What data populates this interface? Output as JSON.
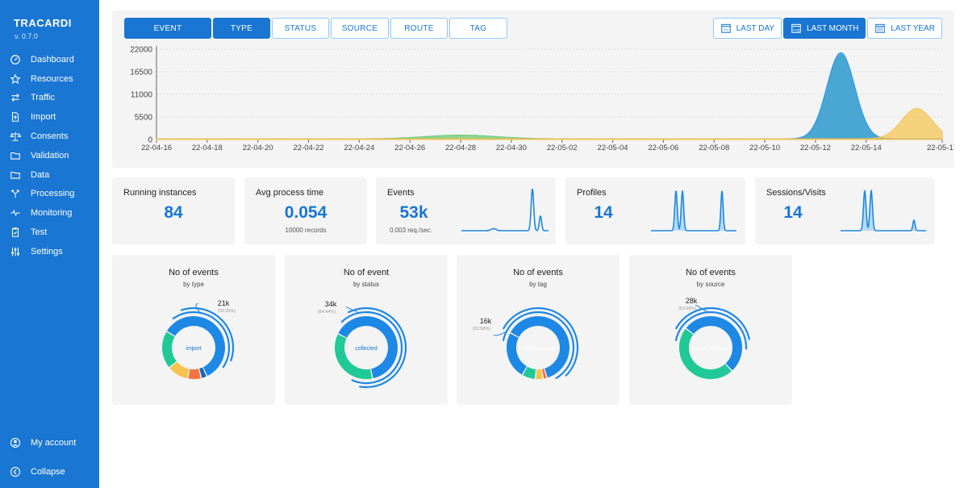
{
  "sidebar": {
    "brand": "TRACARDI",
    "version": "v. 0.7.0",
    "items": [
      {
        "label": "Dashboard",
        "icon": "dashboard-icon"
      },
      {
        "label": "Resources",
        "icon": "star-icon"
      },
      {
        "label": "Traffic",
        "icon": "swap-icon"
      },
      {
        "label": "Import",
        "icon": "import-icon"
      },
      {
        "label": "Consents",
        "icon": "scale-icon"
      },
      {
        "label": "Validation",
        "icon": "folder-icon"
      },
      {
        "label": "Data",
        "icon": "folder-icon"
      },
      {
        "label": "Processing",
        "icon": "fork-icon"
      },
      {
        "label": "Monitoring",
        "icon": "pulse-icon"
      },
      {
        "label": "Test",
        "icon": "clipboard-check-icon"
      },
      {
        "label": "Settings",
        "icon": "sliders-icon"
      }
    ],
    "my_account": "My account",
    "collapse": "Collapse"
  },
  "tabs": [
    "EVENT",
    "TYPE",
    "STATUS",
    "SOURCE",
    "ROUTE",
    "TAG"
  ],
  "active_tabs": [
    "EVENT",
    "TYPE"
  ],
  "ranges": [
    {
      "label": "LAST DAY",
      "icon_text": "Fri"
    },
    {
      "label": "LAST MONTH",
      "icon_text": "Aug"
    },
    {
      "label": "LAST YEAR",
      "icon_text": ""
    }
  ],
  "active_range": "LAST MONTH",
  "chart_data": {
    "type": "area",
    "x_ticks": [
      "22-04-16",
      "22-04-18",
      "22-04-20",
      "22-04-22",
      "22-04-24",
      "22-04-26",
      "22-04-28",
      "22-04-30",
      "22-05-02",
      "22-05-04",
      "22-05-06",
      "22-05-08",
      "22-05-10",
      "22-05-12",
      "22-05-14",
      "22-05-17"
    ],
    "y_ticks": [
      0,
      5500,
      11000,
      16500,
      22000
    ],
    "ylim": [
      0,
      22000
    ],
    "grid": true,
    "series": [
      {
        "color": "#2f95ec",
        "peaks": [
          {
            "x": "22-05-13",
            "y": 21000
          }
        ]
      },
      {
        "color": "#69c96e",
        "peaks": [
          {
            "x": "22-05-13",
            "y": 20500
          },
          {
            "x": "22-04-28",
            "y": 900
          }
        ]
      },
      {
        "color": "#f6c350",
        "peaks": [
          {
            "x": "22-05-16",
            "y": 7400
          }
        ]
      }
    ]
  },
  "stats": [
    {
      "title": "Running instances",
      "value": "84",
      "sub": ""
    },
    {
      "title": "Avg process time",
      "value": "0.054",
      "sub": "10000 records"
    },
    {
      "title": "Events",
      "value": "53k",
      "sub": "0.003 req./sec."
    },
    {
      "title": "Profiles",
      "value": "14",
      "sub": ""
    },
    {
      "title": "Sessions/Visits",
      "value": "14",
      "sub": ""
    }
  ],
  "donuts": [
    {
      "title": "No of events",
      "subtitle": "by type",
      "center": "import",
      "top_value": "21k",
      "top_percent": "(59.35%)",
      "segments": [
        {
          "value": 59.35,
          "color": "#1e88e5"
        },
        {
          "value": 3,
          "color": "#1565c0"
        },
        {
          "value": 7,
          "color": "#f4733e"
        },
        {
          "value": 11,
          "color": "#f6c350"
        },
        {
          "value": 19.65,
          "color": "#20c997"
        }
      ]
    },
    {
      "title": "No of event",
      "subtitle": "by status",
      "center": "collected",
      "top_value": "34k",
      "top_percent": "(64.44%)",
      "segments": [
        {
          "value": 64.44,
          "color": "#1e88e5"
        },
        {
          "value": 35.56,
          "color": "#20c997"
        }
      ]
    },
    {
      "title": "No of events",
      "subtitle": "by tag",
      "center": "performance",
      "top_value": "16k",
      "top_percent": "(62.58%)",
      "segments": [
        {
          "value": 62.58,
          "color": "#1e88e5"
        },
        {
          "value": 2,
          "color": "#f4733e"
        },
        {
          "value": 4,
          "color": "#f6c350"
        },
        {
          "value": 7,
          "color": "#20c997"
        },
        {
          "value": 24.42,
          "color": "#1e88e5"
        }
      ]
    },
    {
      "title": "No of events",
      "subtitle": "by source",
      "center": "Import external",
      "top_value": "28k",
      "top_percent": "(52.66%)",
      "segments": [
        {
          "value": 52.66,
          "color": "#1e88e5"
        },
        {
          "value": 47.34,
          "color": "#20c997"
        }
      ]
    }
  ]
}
